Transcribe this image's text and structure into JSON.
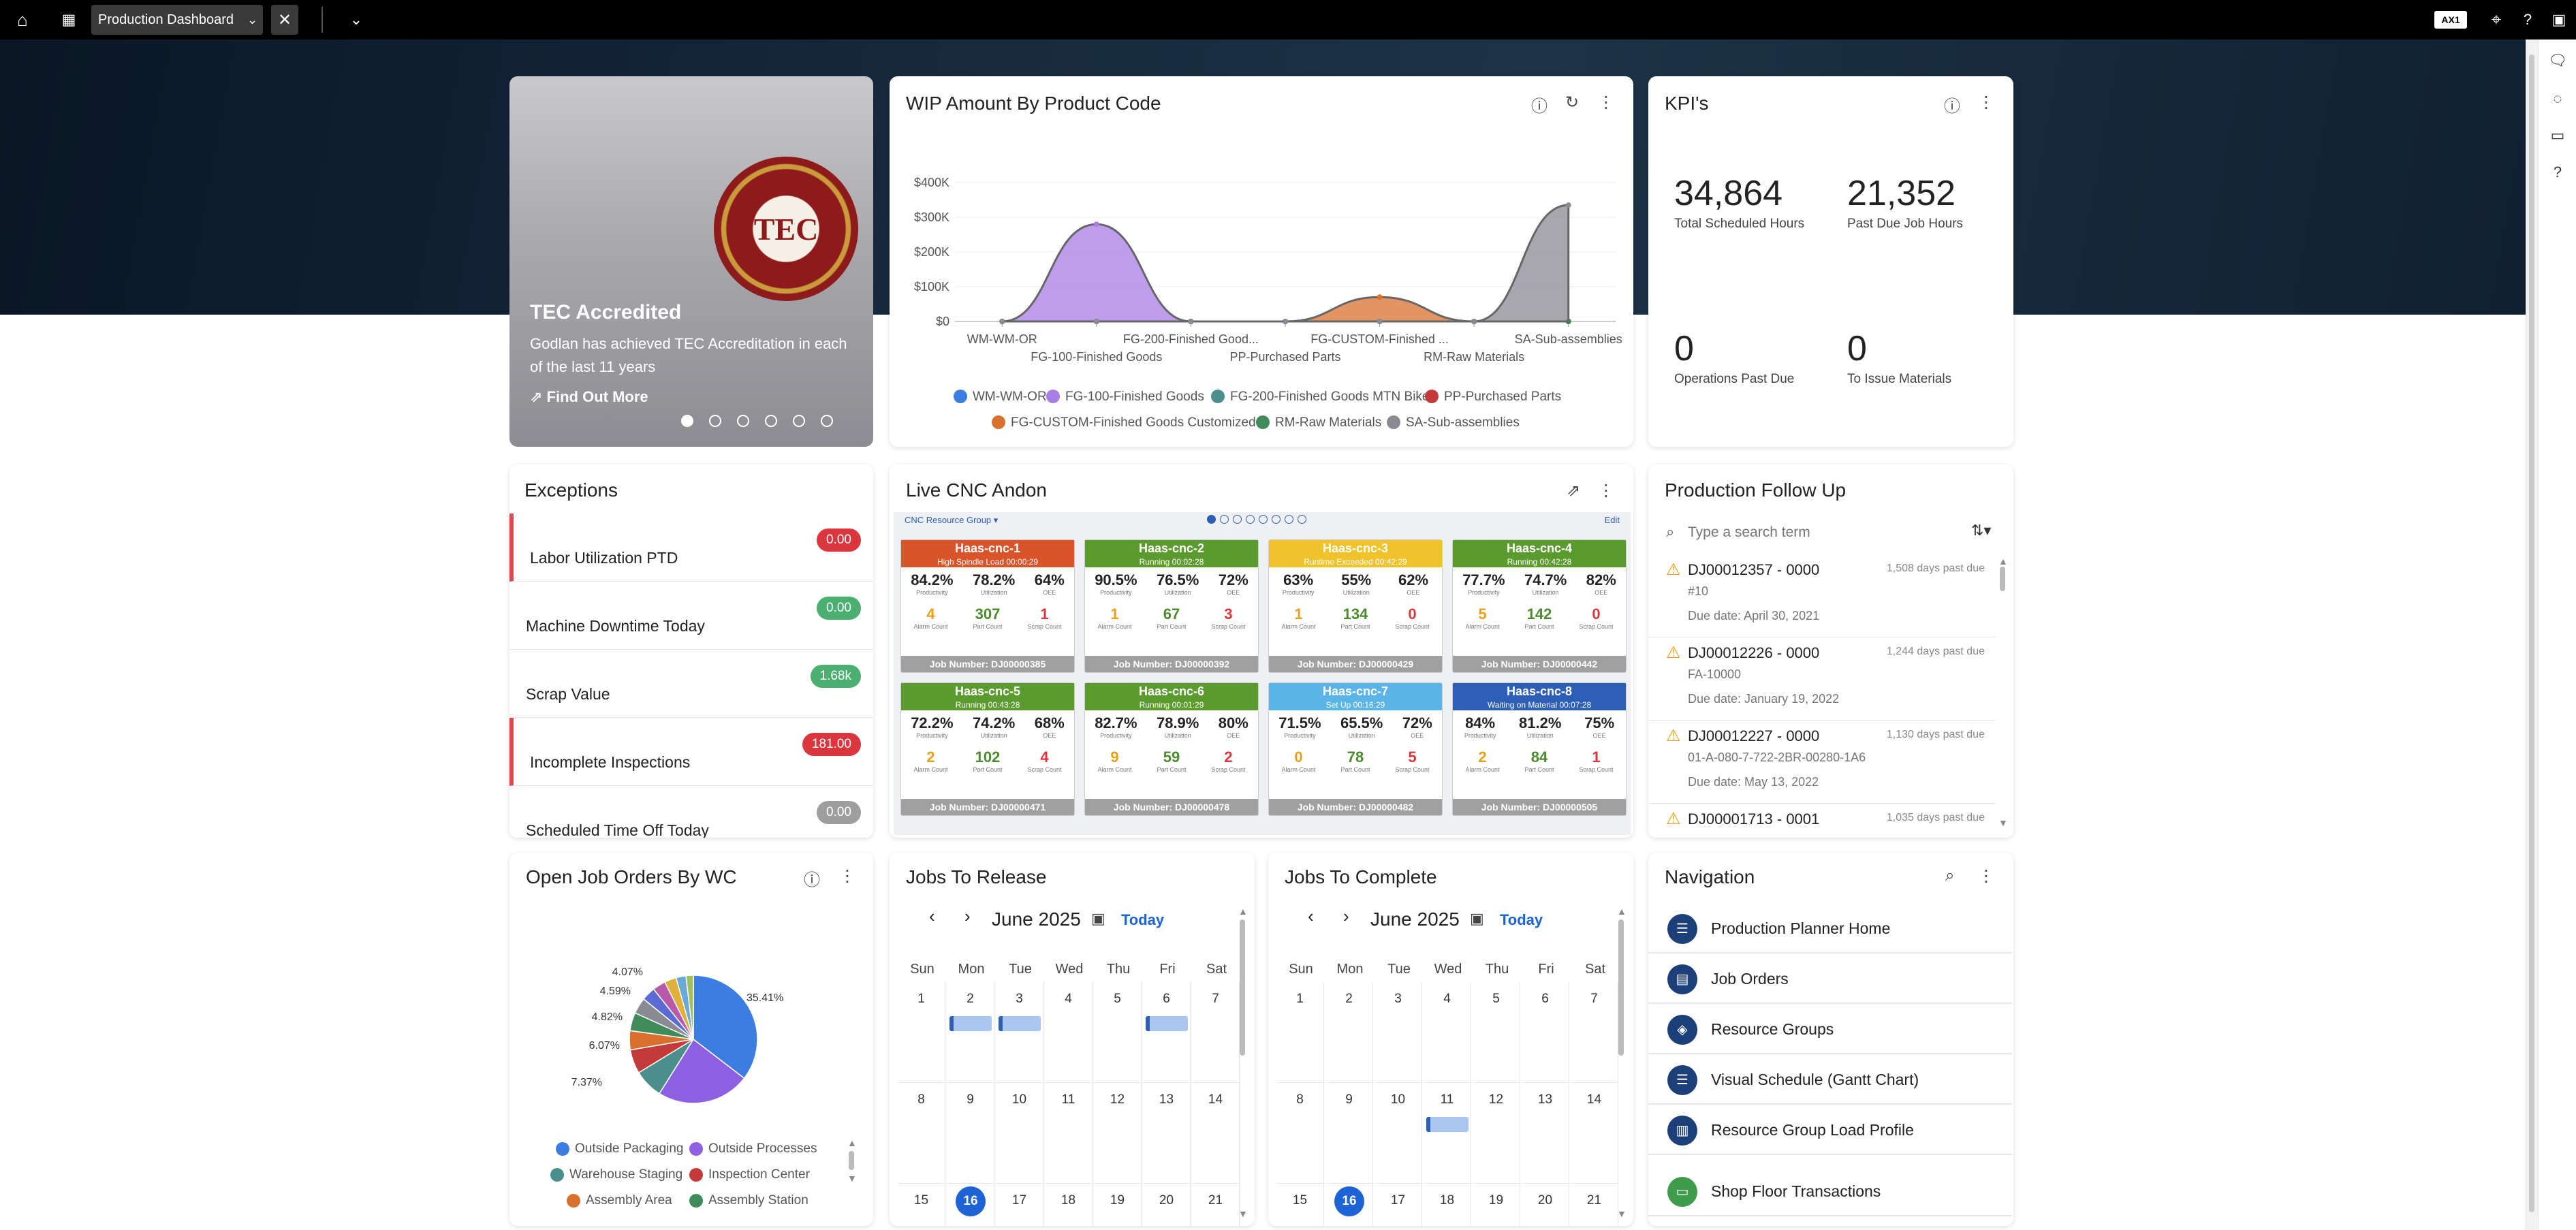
{
  "topbar": {
    "tab_label": "Production Dashboard",
    "badge": "AX1"
  },
  "carousel": {
    "title": "TEC Accredited",
    "text": "Godlan has achieved TEC Accreditation in each of the last 11 years",
    "link": "Find Out More",
    "seal_text": "TEC",
    "active_slide": 1,
    "slide_count": 6
  },
  "wip": {
    "title": "WIP Amount By Product Code"
  },
  "kpis": {
    "title": "KPI's",
    "items": [
      {
        "value": "34,864",
        "label": "Total Scheduled Hours"
      },
      {
        "value": "21,352",
        "label": "Past Due Job Hours"
      },
      {
        "value": "0",
        "label": "Operations Past Due"
      },
      {
        "value": "0",
        "label": "To Issue Materials"
      }
    ]
  },
  "exceptions": {
    "title": "Exceptions",
    "items": [
      {
        "label": "Labor Utilization PTD",
        "value": "0.00",
        "color": "#d9363e"
      },
      {
        "label": "Machine Downtime Today",
        "value": "0.00",
        "color": "#4caf72"
      },
      {
        "label": "Scrap Value",
        "value": "1.68k",
        "color": "#4caf72"
      },
      {
        "label": "Incomplete Inspections",
        "value": "181.00",
        "color": "#d9363e"
      },
      {
        "label": "Scheduled Time Off Today",
        "value": "0.00",
        "color": "#9e9e9e"
      }
    ]
  },
  "cnc": {
    "title": "Live CNC Andon",
    "group_label": "CNC Resource Group",
    "edit_label": "Edit",
    "stat_labels": [
      "Productivity",
      "Utilization",
      "OEE"
    ],
    "count_labels": [
      "Alarm Count",
      "Part Count",
      "Scrap Count"
    ],
    "machines": [
      {
        "name": "Haas-cnc-1",
        "status": "High Spindle Load 00:00:29",
        "color": "#d9542b",
        "p": "84.2%",
        "u": "78.2%",
        "o": "64%",
        "alarm": "4",
        "part": "307",
        "scrap": "1",
        "job": "Job Number: DJ00000385"
      },
      {
        "name": "Haas-cnc-2",
        "status": "Running 00:02:28",
        "color": "#5b9a2e",
        "p": "90.5%",
        "u": "76.5%",
        "o": "72%",
        "alarm": "1",
        "part": "67",
        "scrap": "3",
        "job": "Job Number: DJ00000392"
      },
      {
        "name": "Haas-cnc-3",
        "status": "Runtime Exceeded 00:42:29",
        "color": "#f0c22c",
        "p": "63%",
        "u": "55%",
        "o": "62%",
        "alarm": "1",
        "part": "134",
        "scrap": "0",
        "job": "Job Number: DJ00000429"
      },
      {
        "name": "Haas-cnc-4",
        "status": "Running 00:42:28",
        "color": "#5b9a2e",
        "p": "77.7%",
        "u": "74.7%",
        "o": "82%",
        "alarm": "5",
        "part": "142",
        "scrap": "0",
        "job": "Job Number: DJ00000442"
      },
      {
        "name": "Haas-cnc-5",
        "status": "Running 00:43:28",
        "color": "#5b9a2e",
        "p": "72.2%",
        "u": "74.2%",
        "o": "68%",
        "alarm": "2",
        "part": "102",
        "scrap": "4",
        "job": "Job Number: DJ00000471"
      },
      {
        "name": "Haas-cnc-6",
        "status": "Running 00:01:29",
        "color": "#5b9a2e",
        "p": "82.7%",
        "u": "78.9%",
        "o": "80%",
        "alarm": "9",
        "part": "59",
        "scrap": "2",
        "job": "Job Number: DJ00000478"
      },
      {
        "name": "Haas-cnc-7",
        "status": "Set Up 00:16:29",
        "color": "#5ab4e8",
        "p": "71.5%",
        "u": "65.5%",
        "o": "72%",
        "alarm": "0",
        "part": "78",
        "scrap": "5",
        "job": "Job Number: DJ00000482"
      },
      {
        "name": "Haas-cnc-8",
        "status": "Waiting on Material 00:07:28",
        "color": "#2c5fb5",
        "p": "84%",
        "u": "81.2%",
        "o": "75%",
        "alarm": "2",
        "part": "84",
        "scrap": "1",
        "job": "Job Number: DJ00000505"
      }
    ]
  },
  "followup": {
    "title": "Production Follow Up",
    "placeholder": "Type a search term",
    "jobs": [
      {
        "id": "DJ00012357 - 0000",
        "days": "1,508 days past due",
        "d1": "#10",
        "d2": "Due date: April 30, 2021"
      },
      {
        "id": "DJ00012226 - 0000",
        "days": "1,244 days past due",
        "d1": "FA-10000",
        "d2": "Due date: January 19, 2022"
      },
      {
        "id": "DJ00012227 - 0000",
        "days": "1,130 days past due",
        "d1": "01-A-080-7-722-2BR-00280-1A6",
        "d2": "Due date: May 13, 2022"
      },
      {
        "id": "DJ00001713 - 0001",
        "days": "1,035 days past due",
        "d1": "",
        "d2": ""
      }
    ]
  },
  "openjobs": {
    "title": "Open Job Orders By WC",
    "pct_labels": [
      "35.41%",
      "7.37%",
      "6.07%",
      "4.82%",
      "4.59%",
      "4.07%"
    ],
    "legend": [
      {
        "name": "Outside Packaging",
        "color": "#3b7de0"
      },
      {
        "name": "Outside Processes",
        "color": "#8e5fe0"
      },
      {
        "name": "Warehouse Staging",
        "color": "#4b8f8c"
      },
      {
        "name": "Inspection Center",
        "color": "#c43a3a"
      },
      {
        "name": "Assembly Area",
        "color": "#d8702e"
      },
      {
        "name": "Assembly Station",
        "color": "#3f8c5a"
      }
    ]
  },
  "release": {
    "title": "Jobs To Release",
    "month": "June 2025",
    "today": "Today"
  },
  "complete": {
    "title": "Jobs To Complete",
    "month": "June 2025",
    "today": "Today"
  },
  "calendar": {
    "dow": [
      "Sun",
      "Mon",
      "Tue",
      "Wed",
      "Thu",
      "Fri",
      "Sat"
    ],
    "rows": [
      [
        "1",
        "2",
        "3",
        "4",
        "5",
        "6",
        "7"
      ],
      [
        "8",
        "9",
        "10",
        "11",
        "12",
        "13",
        "14"
      ],
      [
        "15",
        "16",
        "17",
        "18",
        "19",
        "20",
        "21"
      ]
    ]
  },
  "navigation": {
    "title": "Navigation",
    "items": [
      {
        "label": "Production Planner Home",
        "icon": "list-icon",
        "glyph": "☰",
        "color": "#1c3f7a"
      },
      {
        "label": "Job Orders",
        "icon": "clipboard-icon",
        "glyph": "▤",
        "color": "#1c3f7a"
      },
      {
        "label": "Resource Groups",
        "icon": "layers-icon",
        "glyph": "◈",
        "color": "#1c3f7a"
      },
      {
        "label": "Visual Schedule (Gantt Chart)",
        "icon": "list-icon",
        "glyph": "☰",
        "color": "#1c3f7a"
      },
      {
        "label": "Resource Group Load Profile",
        "icon": "bar-chart-icon",
        "glyph": "▥",
        "color": "#1c3f7a"
      },
      {
        "label": "Shop Floor Transactions",
        "icon": "folder-icon",
        "glyph": "▭",
        "color": "#3f9c4a"
      }
    ]
  },
  "chart_data": [
    {
      "type": "area",
      "title": "WIP Amount By Product Code",
      "categories": [
        "WM-WM-OR",
        "FG-100-Finished Goods",
        "FG-200-Finished Good...",
        "PP-Purchased Parts",
        "FG-CUSTOM-Finished ...",
        "RM-Raw Materials",
        "SA-Sub-assemblies"
      ],
      "ytick_labels": [
        "$0",
        "$100K",
        "$200K",
        "$300K",
        "$400K"
      ],
      "ylim": [
        0,
        400000
      ],
      "series": [
        {
          "name": "WM-WM-OR",
          "color": "#3b7de0",
          "values": [
            0,
            0,
            0,
            0,
            0,
            0,
            0
          ]
        },
        {
          "name": "FG-100-Finished Goods",
          "color": "#a87ee6",
          "values": [
            0,
            280000,
            0,
            0,
            0,
            0,
            0
          ]
        },
        {
          "name": "FG-200-Finished Goods MTN Bike",
          "color": "#4b8f8c",
          "values": [
            0,
            0,
            0,
            0,
            0,
            0,
            0
          ]
        },
        {
          "name": "PP-Purchased Parts",
          "color": "#c43a3a",
          "values": [
            0,
            0,
            0,
            0,
            0,
            0,
            0
          ]
        },
        {
          "name": "FG-CUSTOM-Finished Goods Customized",
          "color": "#d8702e",
          "values": [
            0,
            0,
            0,
            0,
            70000,
            0,
            0
          ]
        },
        {
          "name": "RM-Raw Materials",
          "color": "#3f8c5a",
          "values": [
            0,
            0,
            0,
            0,
            0,
            0,
            0
          ]
        },
        {
          "name": "SA-Sub-assemblies",
          "color": "#8a8a92",
          "values": [
            0,
            0,
            0,
            0,
            0,
            0,
            335000
          ]
        }
      ]
    },
    {
      "type": "pie",
      "title": "Open Job Orders By WC",
      "slices": [
        {
          "label": "Outside Packaging",
          "value": 35.41,
          "color": "#3b7de0"
        },
        {
          "label": "Outside Processes",
          "value": 23.5,
          "color": "#8e5fe0"
        },
        {
          "label": "Warehouse Staging",
          "value": 7.37,
          "color": "#4b8f8c"
        },
        {
          "label": "Inspection Center",
          "value": 6.07,
          "color": "#c43a3a"
        },
        {
          "label": "Assembly Area",
          "value": 4.82,
          "color": "#d8702e"
        },
        {
          "label": "Assembly Station",
          "value": 4.59,
          "color": "#3f8c5a"
        },
        {
          "label": "",
          "value": 4.07,
          "color": "#8a8a92"
        },
        {
          "label": "",
          "value": 3.5,
          "color": "#5b6bd6"
        },
        {
          "label": "",
          "value": 3.3,
          "color": "#b85aa8"
        },
        {
          "label": "",
          "value": 3.0,
          "color": "#e0b13a"
        },
        {
          "label": "",
          "value": 2.5,
          "color": "#6aa8d8"
        },
        {
          "label": "",
          "value": 1.87,
          "color": "#a0c060"
        }
      ]
    }
  ]
}
